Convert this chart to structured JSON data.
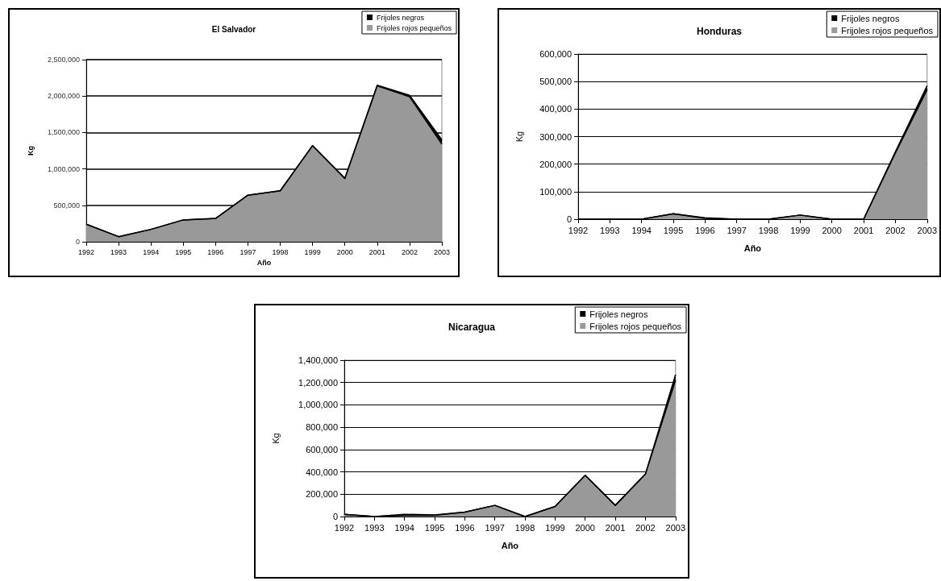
{
  "chart_data": [
    {
      "type": "area",
      "stacked": true,
      "title": "El Salvador",
      "xlabel": "Año",
      "ylabel": "Kg",
      "legend": "top right",
      "grid": "y",
      "marker": "none",
      "categories": [
        "1992",
        "1993",
        "1994",
        "1995",
        "1996",
        "1997",
        "1998",
        "1999",
        "2000",
        "2001",
        "2002",
        "2003"
      ],
      "ylim": [
        0,
        2500000
      ],
      "yticks": [
        {
          "value": 0,
          "label": "0"
        },
        {
          "value": 500000,
          "label": "500,000"
        },
        {
          "value": 1000000,
          "label": "1,000,000"
        },
        {
          "value": 1500000,
          "label": "1,500,000"
        },
        {
          "value": 2000000,
          "label": "2,000,000"
        },
        {
          "value": 2500000,
          "label": "2,500,000"
        }
      ],
      "series": [
        {
          "name": "Frijoles rojos pequeños",
          "color": "#999999",
          "values": [
            240000,
            70000,
            170000,
            300000,
            320000,
            640000,
            700000,
            1320000,
            870000,
            2140000,
            1990000,
            1340000
          ]
        },
        {
          "name": "Frijoles negros",
          "color": "#000000",
          "values": [
            0,
            0,
            0,
            0,
            0,
            0,
            0,
            0,
            0,
            10000,
            20000,
            60000
          ]
        }
      ]
    },
    {
      "type": "area",
      "stacked": true,
      "title": "Honduras",
      "xlabel": "Año",
      "ylabel": "Kg",
      "legend": "top right",
      "grid": "y",
      "marker": "none",
      "categories": [
        "1992",
        "1993",
        "1994",
        "1995",
        "1996",
        "1997",
        "1998",
        "1999",
        "2000",
        "2001",
        "2002",
        "2003"
      ],
      "ylim": [
        0,
        600000
      ],
      "yticks": [
        {
          "value": 0,
          "label": "0"
        },
        {
          "value": 100000,
          "label": "100,000"
        },
        {
          "value": 200000,
          "label": "200,000"
        },
        {
          "value": 300000,
          "label": "300,000"
        },
        {
          "value": 400000,
          "label": "400,000"
        },
        {
          "value": 500000,
          "label": "500,000"
        },
        {
          "value": 600000,
          "label": "600,000"
        }
      ],
      "series": [
        {
          "name": "Frijoles rojos pequeños",
          "color": "#999999",
          "values": [
            0,
            0,
            0,
            20000,
            3000,
            0,
            0,
            15000,
            0,
            0,
            240000,
            470000
          ]
        },
        {
          "name": "Frijoles negros",
          "color": "#000000",
          "values": [
            0,
            0,
            0,
            0,
            2000,
            0,
            0,
            0,
            0,
            0,
            5000,
            15000
          ]
        }
      ]
    },
    {
      "type": "area",
      "stacked": true,
      "title": "Nicaragua",
      "xlabel": "Año",
      "ylabel": "Kg",
      "legend": "top right",
      "grid": "y",
      "marker": "none",
      "categories": [
        "1992",
        "1993",
        "1994",
        "1995",
        "1996",
        "1997",
        "1998",
        "1999",
        "2000",
        "2001",
        "2002",
        "2003"
      ],
      "ylim": [
        0,
        1400000
      ],
      "yticks": [
        {
          "value": 0,
          "label": "0"
        },
        {
          "value": 200000,
          "label": "200,000"
        },
        {
          "value": 400000,
          "label": "400,000"
        },
        {
          "value": 600000,
          "label": "600,000"
        },
        {
          "value": 800000,
          "label": "800,000"
        },
        {
          "value": 1000000,
          "label": "1,000,000"
        },
        {
          "value": 1200000,
          "label": "1,200,000"
        },
        {
          "value": 1400000,
          "label": "1,400,000"
        }
      ],
      "series": [
        {
          "name": "Frijoles rojos pequeños",
          "color": "#999999",
          "values": [
            20000,
            0,
            10000,
            10000,
            40000,
            100000,
            0,
            90000,
            370000,
            100000,
            380000,
            1220000
          ]
        },
        {
          "name": "Frijoles negros",
          "color": "#000000",
          "values": [
            0,
            0,
            10000,
            5000,
            0,
            0,
            0,
            0,
            0,
            0,
            0,
            50000
          ]
        }
      ]
    }
  ]
}
